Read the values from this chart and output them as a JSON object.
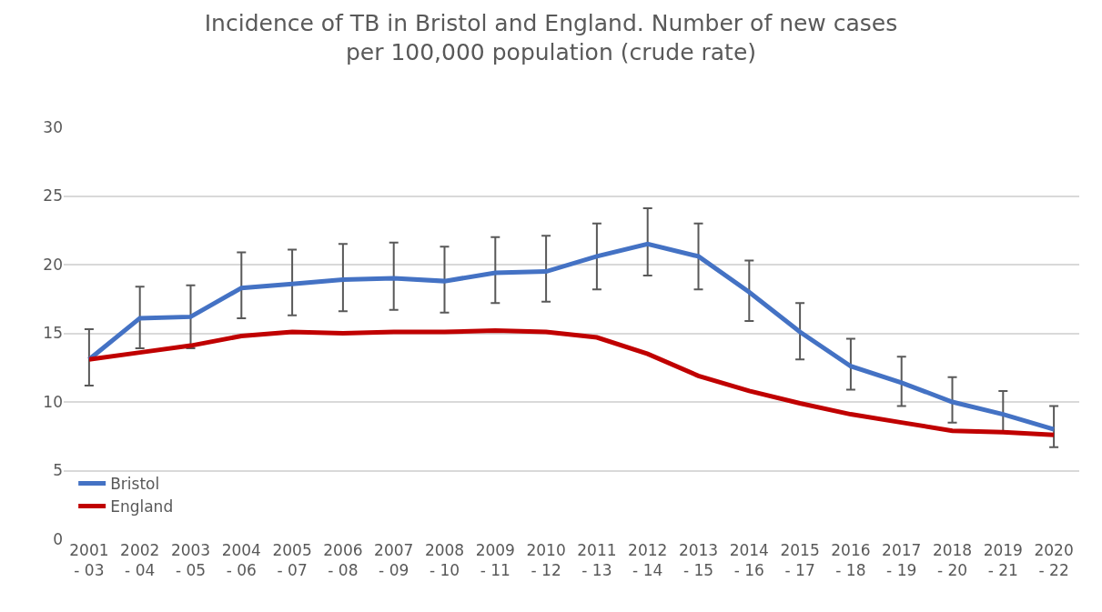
{
  "chart_data": {
    "type": "line",
    "title": "Incidence of TB in Bristol and England. Number of new cases\nper 100,000 population (crude rate)",
    "categories": [
      "2001\n- 03",
      "2002\n- 04",
      "2003\n- 05",
      "2004\n- 06",
      "2005\n- 07",
      "2006\n- 08",
      "2007\n- 09",
      "2008\n- 10",
      "2009\n- 11",
      "2010\n- 12",
      "2011\n- 13",
      "2012\n- 14",
      "2013\n- 15",
      "2014\n- 16",
      "2015\n- 17",
      "2016\n- 18",
      "2017\n- 19",
      "2018\n- 20",
      "2019\n- 21",
      "2020\n- 22"
    ],
    "series": [
      {
        "name": "Bristol",
        "color": "#4472c4",
        "values": [
          13.1,
          16.1,
          16.2,
          18.3,
          18.6,
          18.9,
          19.0,
          18.8,
          19.4,
          19.5,
          20.6,
          21.5,
          20.6,
          18.0,
          15.1,
          12.6,
          11.4,
          10.0,
          9.1,
          8.0
        ],
        "errors": [
          [
            11.2,
            15.3
          ],
          [
            13.9,
            18.4
          ],
          [
            13.9,
            18.5
          ],
          [
            16.1,
            20.9
          ],
          [
            16.3,
            21.1
          ],
          [
            16.6,
            21.5
          ],
          [
            16.7,
            21.6
          ],
          [
            16.5,
            21.3
          ],
          [
            17.2,
            22.0
          ],
          [
            17.3,
            22.1
          ],
          [
            18.2,
            23.0
          ],
          [
            19.2,
            24.1
          ],
          [
            18.2,
            23.0
          ],
          [
            15.9,
            20.3
          ],
          [
            13.1,
            17.2
          ],
          [
            10.9,
            14.6
          ],
          [
            9.7,
            13.3
          ],
          [
            8.5,
            11.8
          ],
          [
            7.8,
            10.8
          ],
          [
            6.7,
            9.7
          ]
        ]
      },
      {
        "name": "England",
        "color": "#c00000",
        "values": [
          13.1,
          13.6,
          14.1,
          14.8,
          15.1,
          15.0,
          15.1,
          15.1,
          15.2,
          15.1,
          14.7,
          13.5,
          11.9,
          10.8,
          9.9,
          9.1,
          8.5,
          7.9,
          7.8,
          7.6
        ]
      }
    ],
    "ylim": [
      0,
      30
    ],
    "yticks": [
      0,
      5,
      10,
      15,
      20,
      25,
      30
    ],
    "grid": "y",
    "legend": "bottom left",
    "marker": "none",
    "line_style": "solid"
  }
}
